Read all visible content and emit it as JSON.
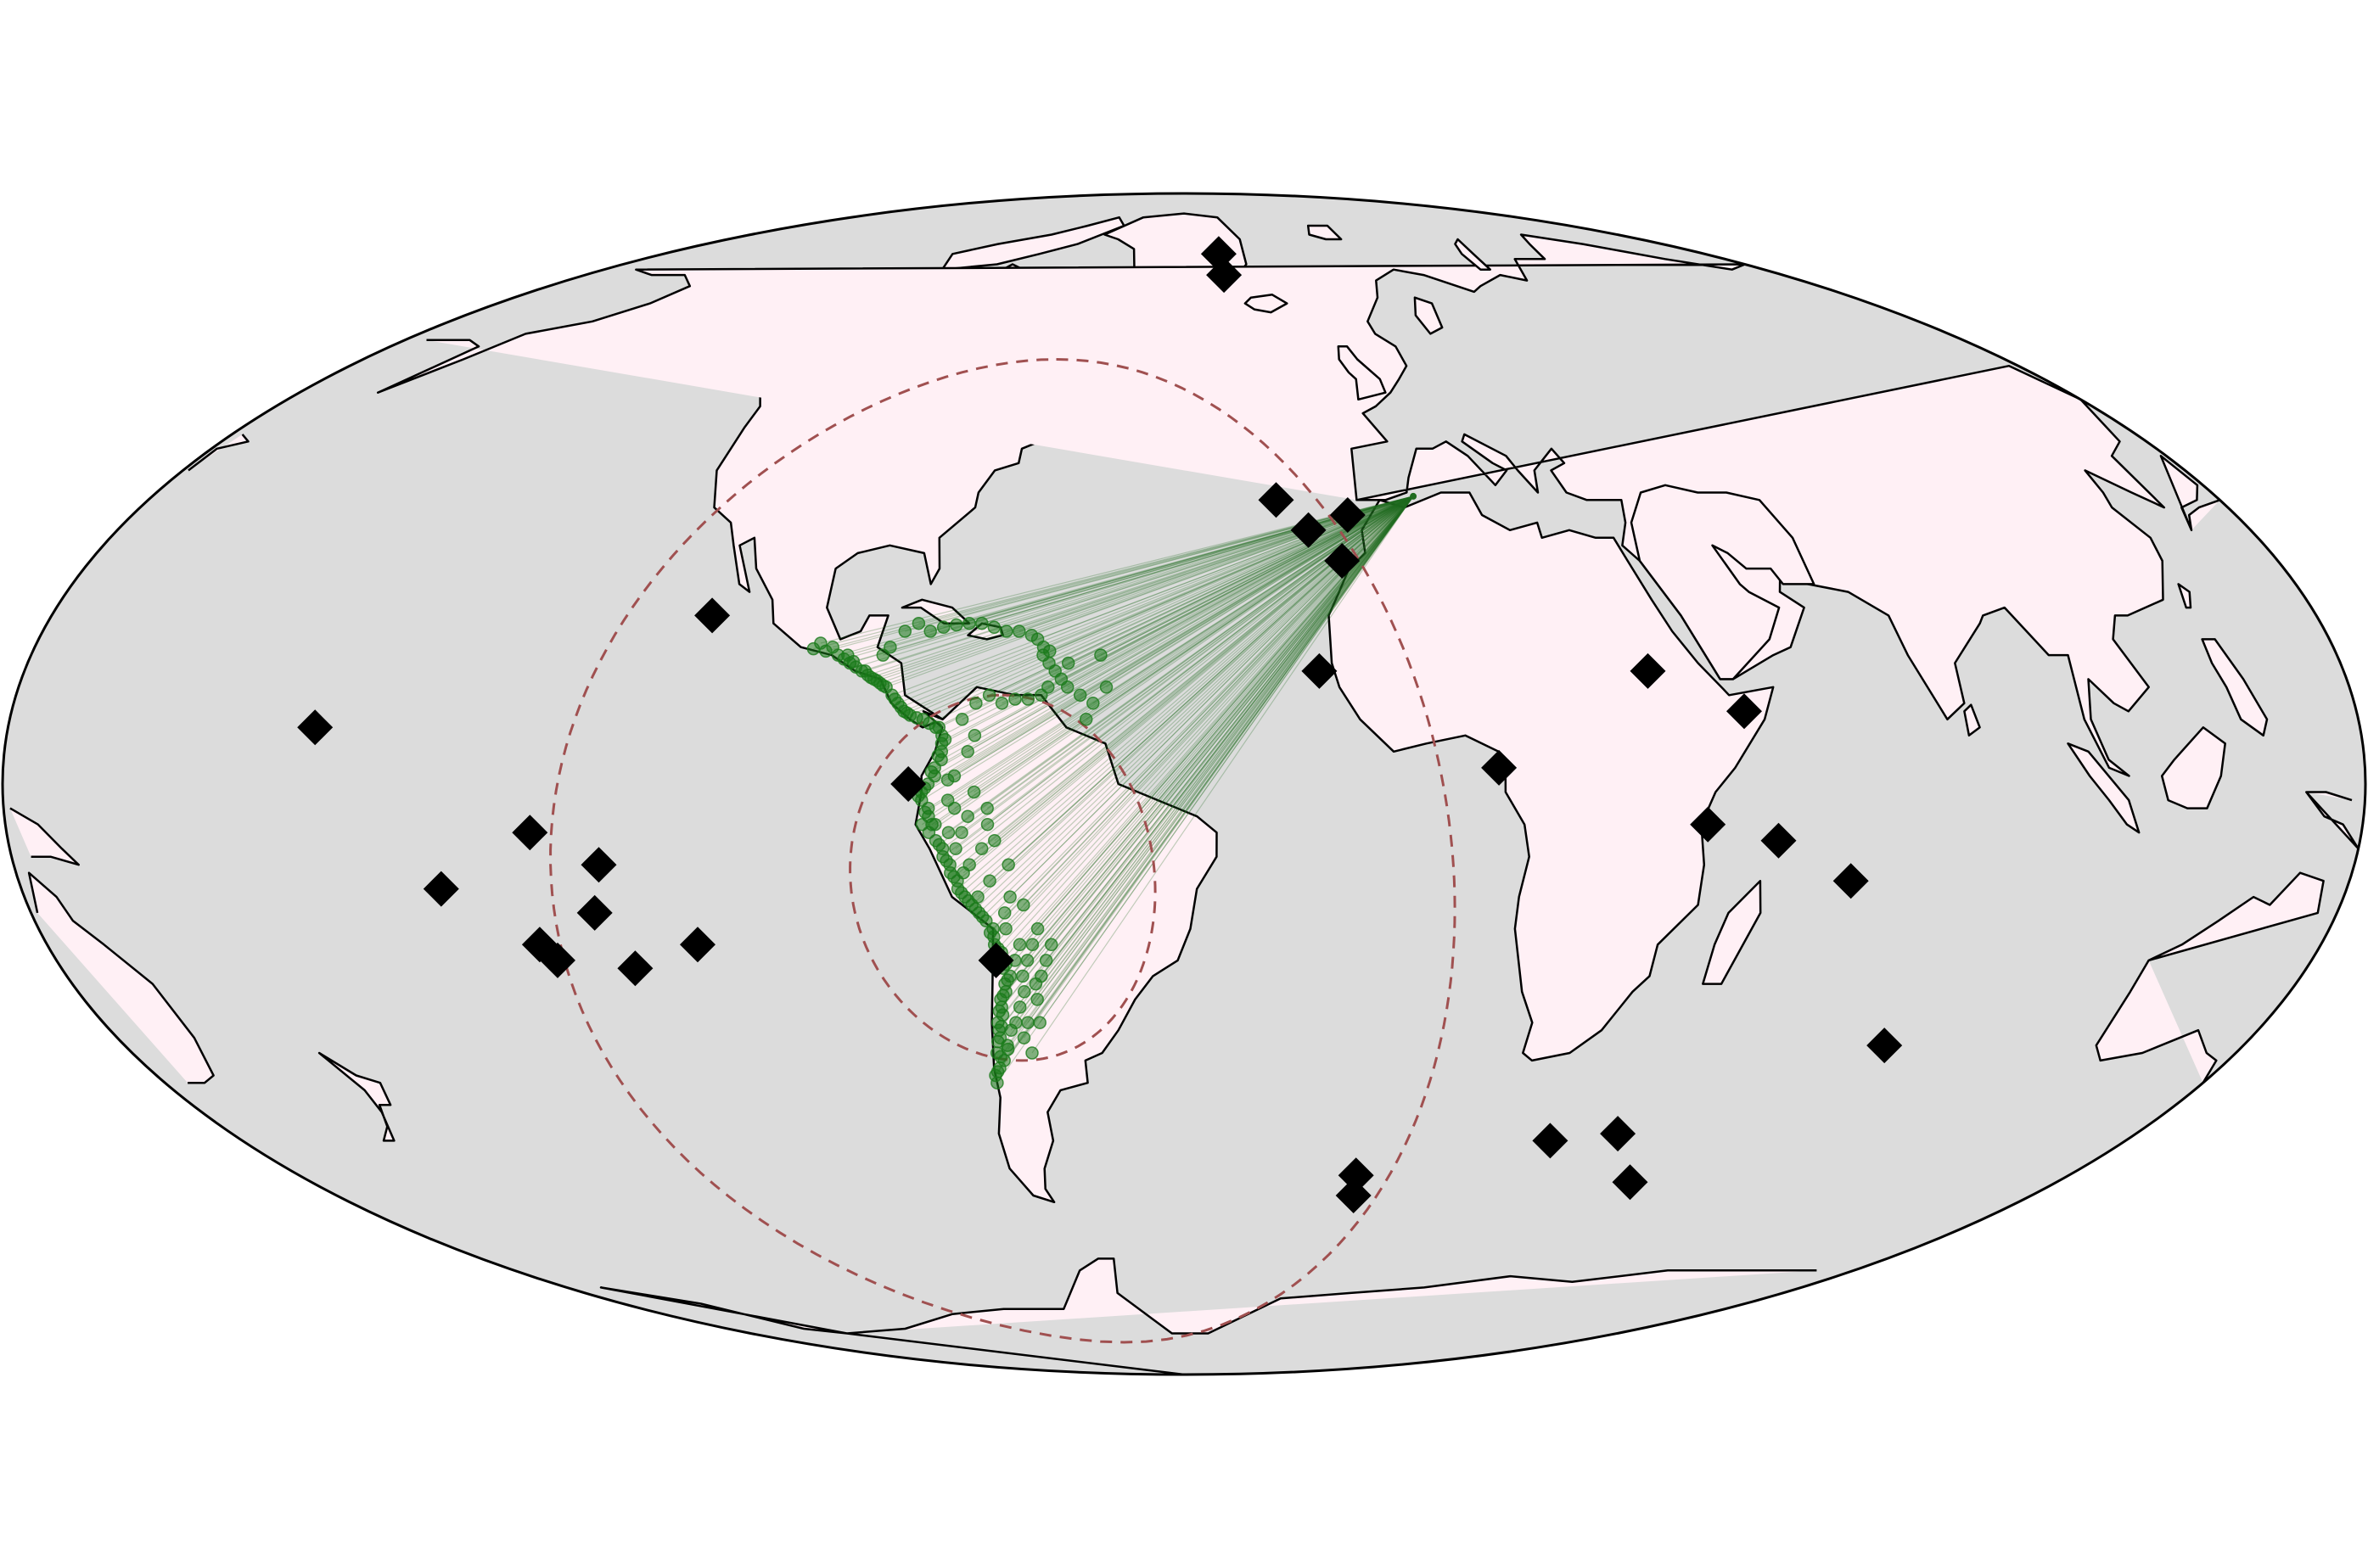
{
  "map": {
    "projection": "mollweide",
    "central_longitude": -40,
    "colors": {
      "ocean": "#dcdcdc",
      "land": "#fff0f5",
      "coast": "#000000",
      "outline": "#000000",
      "circle": "#a05050",
      "ray": "#1f6b1f",
      "point": "#1a7a1a",
      "marker": "#000000"
    },
    "source_point": {
      "name": "source",
      "lon": 0,
      "lat": 36.5
    },
    "distance_circles": [
      {
        "name": "inner-circle",
        "lon": -68,
        "lat": -12,
        "radius_deg": 23
      },
      {
        "name": "outer-circle",
        "lon": -68,
        "lat": -12,
        "radius_deg": 68
      }
    ],
    "diamond_markers": [
      {
        "lon": -28,
        "lat": 74
      },
      {
        "lon": -28,
        "lat": 70
      },
      {
        "lon": -24,
        "lat": 36
      },
      {
        "lon": -19,
        "lat": 32
      },
      {
        "lon": -12,
        "lat": 34
      },
      {
        "lon": -14,
        "lat": 28
      },
      {
        "lon": -19,
        "lat": 14
      },
      {
        "lon": 8,
        "lat": 2
      },
      {
        "lon": 32,
        "lat": 14
      },
      {
        "lon": 46,
        "lat": 9
      },
      {
        "lon": 40,
        "lat": -5
      },
      {
        "lon": 51,
        "lat": -7
      },
      {
        "lon": 63,
        "lat": -12
      },
      {
        "lon": 79,
        "lat": -33
      },
      {
        "lon": 30,
        "lat": -46
      },
      {
        "lon": 42,
        "lat": -45
      },
      {
        "lon": 52,
        "lat": -52
      },
      {
        "lon": -5,
        "lat": -51
      },
      {
        "lon": -4,
        "lat": -54
      },
      {
        "lon": -115,
        "lat": 21
      },
      {
        "lon": -173,
        "lat": 7
      },
      {
        "lon": -140,
        "lat": -6
      },
      {
        "lon": -130,
        "lat": -10
      },
      {
        "lon": -155,
        "lat": -13
      },
      {
        "lon": -132,
        "lat": -16
      },
      {
        "lon": -142,
        "lat": -20
      },
      {
        "lon": -140,
        "lat": -22
      },
      {
        "lon": -128,
        "lat": -23
      },
      {
        "lon": -117,
        "lat": -20
      },
      {
        "lon": -82,
        "lat": 0
      },
      {
        "lon": -70,
        "lat": -22
      }
    ],
    "event_points": [
      [
        -94,
        16
      ],
      [
        -93,
        15.5
      ],
      [
        -92,
        15
      ],
      [
        -91,
        14.5
      ],
      [
        -90,
        14
      ],
      [
        -89,
        13.5
      ],
      [
        -88,
        13
      ],
      [
        -87,
        12.5
      ],
      [
        -86,
        12
      ],
      [
        -85,
        11
      ],
      [
        -84,
        10
      ],
      [
        -83,
        9
      ],
      [
        -82,
        8.5
      ],
      [
        -80,
        8
      ],
      [
        -78,
        7
      ],
      [
        -77,
        6
      ],
      [
        -77,
        5
      ],
      [
        -77,
        4
      ],
      [
        -77,
        3
      ],
      [
        -78,
        2
      ],
      [
        -78,
        1
      ],
      [
        -79,
        0
      ],
      [
        -80,
        -1
      ],
      [
        -80,
        -2
      ],
      [
        -79,
        -3
      ],
      [
        -79,
        -4
      ],
      [
        -80,
        -5
      ],
      [
        -79,
        -6
      ],
      [
        -78,
        -7
      ],
      [
        -77,
        -8
      ],
      [
        -77,
        -9
      ],
      [
        -76,
        -10
      ],
      [
        -76,
        -11
      ],
      [
        -75,
        -12
      ],
      [
        -75,
        -13
      ],
      [
        -74,
        -14
      ],
      [
        -73,
        -15
      ],
      [
        -72,
        -16
      ],
      [
        -71,
        -17
      ],
      [
        -70,
        -18
      ],
      [
        -70,
        -19
      ],
      [
        -70,
        -20
      ],
      [
        -69,
        -21
      ],
      [
        -69,
        -22
      ],
      [
        -69,
        -23
      ],
      [
        -68,
        -24
      ],
      [
        -69,
        -25
      ],
      [
        -69,
        -26
      ],
      [
        -70,
        -27
      ],
      [
        -70,
        -28
      ],
      [
        -70,
        -29
      ],
      [
        -71,
        -30
      ],
      [
        -71,
        -31
      ],
      [
        -71,
        -32
      ],
      [
        -70,
        -33
      ],
      [
        -72,
        -34
      ],
      [
        -71,
        -35
      ],
      [
        -72,
        -36
      ],
      [
        -73,
        -37
      ],
      [
        -73,
        -38
      ],
      [
        -70,
        -33.5
      ],
      [
        -69,
        -31
      ],
      [
        -68,
        -30
      ],
      [
        -67,
        -28
      ],
      [
        -66,
        -26
      ],
      [
        -66,
        -24
      ],
      [
        -67,
        -22
      ],
      [
        -66,
        -20
      ],
      [
        -68,
        -18
      ],
      [
        -64,
        -20
      ],
      [
        -65,
        -22
      ],
      [
        -63,
        -24
      ],
      [
        -64,
        -27
      ],
      [
        -66,
        -30
      ],
      [
        -67,
        -32
      ],
      [
        -66,
        -34
      ],
      [
        -64,
        -30
      ],
      [
        -64,
        -25
      ],
      [
        -75,
        -8
      ],
      [
        -74,
        -6
      ],
      [
        -73,
        -4
      ],
      [
        -76,
        -2
      ],
      [
        -75,
        1
      ],
      [
        -73,
        4
      ],
      [
        -72,
        6
      ],
      [
        -74,
        8
      ],
      [
        -72,
        10
      ],
      [
        -70,
        11
      ],
      [
        -68,
        10
      ],
      [
        -66,
        10.5
      ],
      [
        -64,
        10.5
      ],
      [
        -62,
        11
      ],
      [
        -61,
        12
      ],
      [
        -62,
        16
      ],
      [
        -61,
        16.5
      ],
      [
        -62,
        17
      ],
      [
        -63,
        18
      ],
      [
        -64,
        18.5
      ],
      [
        -66,
        19
      ],
      [
        -68,
        19
      ],
      [
        -70,
        19.5
      ],
      [
        -72,
        20
      ],
      [
        -74,
        20
      ],
      [
        -76,
        19.8
      ],
      [
        -78,
        19.5
      ],
      [
        -80,
        19
      ],
      [
        -82,
        20
      ],
      [
        -84,
        19
      ],
      [
        -86,
        17
      ],
      [
        -87,
        16
      ],
      [
        -59,
        13
      ],
      [
        -60,
        14
      ],
      [
        -61,
        15
      ],
      [
        -58,
        15
      ],
      [
        -58,
        12
      ],
      [
        -56,
        11
      ],
      [
        -55,
        8
      ],
      [
        -54,
        10
      ],
      [
        -52,
        12
      ],
      [
        -53,
        16
      ],
      [
        -76,
        0.5
      ],
      [
        -72,
        -1
      ],
      [
        -70,
        -5
      ],
      [
        -71,
        -8
      ],
      [
        -73,
        -10
      ],
      [
        -70,
        -12
      ],
      [
        -72,
        -14
      ],
      [
        -68,
        -16
      ],
      [
        -67,
        -14
      ],
      [
        -74,
        -11
      ],
      [
        -78,
        -5
      ],
      [
        -76,
        -6
      ],
      [
        -75,
        -3
      ],
      [
        -62,
        -22
      ],
      [
        -61,
        -20
      ],
      [
        -63,
        -18
      ],
      [
        -65,
        -15
      ],
      [
        -67,
        -10
      ],
      [
        -69,
        -7
      ],
      [
        -70,
        -3
      ],
      [
        -95,
        17
      ],
      [
        -96,
        16.5
      ],
      [
        -97,
        17.5
      ],
      [
        -98,
        16.8
      ],
      [
        -92.5,
        16
      ],
      [
        -91.5,
        15.2
      ],
      [
        -89.5,
        14
      ],
      [
        -88.5,
        13.2
      ],
      [
        -87.5,
        12.8
      ],
      [
        -86.5,
        12.2
      ],
      [
        -84.5,
        10.5
      ],
      [
        -83.5,
        9.5
      ],
      [
        -82.5,
        8.8
      ],
      [
        -81,
        8.2
      ],
      [
        -79,
        7.5
      ],
      [
        -77.5,
        7
      ],
      [
        -76.5,
        5.5
      ],
      [
        -77.5,
        3.5
      ],
      [
        -78.5,
        1.5
      ],
      [
        -79.5,
        -0.5
      ],
      [
        -80.5,
        -1.5
      ],
      [
        -79.5,
        -3.5
      ],
      [
        -78.5,
        -5
      ],
      [
        -77.5,
        -7.5
      ],
      [
        -76.5,
        -9.5
      ],
      [
        -75.5,
        -11.5
      ],
      [
        -74.5,
        -13.5
      ],
      [
        -73.5,
        -14.5
      ],
      [
        -72.5,
        -15.5
      ],
      [
        -71.5,
        -16.5
      ],
      [
        -70.5,
        -18.5
      ],
      [
        -69.5,
        -20.5
      ],
      [
        -68.5,
        -22.5
      ],
      [
        -68.5,
        -24.5
      ],
      [
        -69.5,
        -26.5
      ],
      [
        -70.5,
        -28.5
      ],
      [
        -70.5,
        -30.5
      ],
      [
        -71.5,
        -32.5
      ],
      [
        -71.5,
        -34.5
      ],
      [
        -72.5,
        -36.5
      ]
    ]
  }
}
